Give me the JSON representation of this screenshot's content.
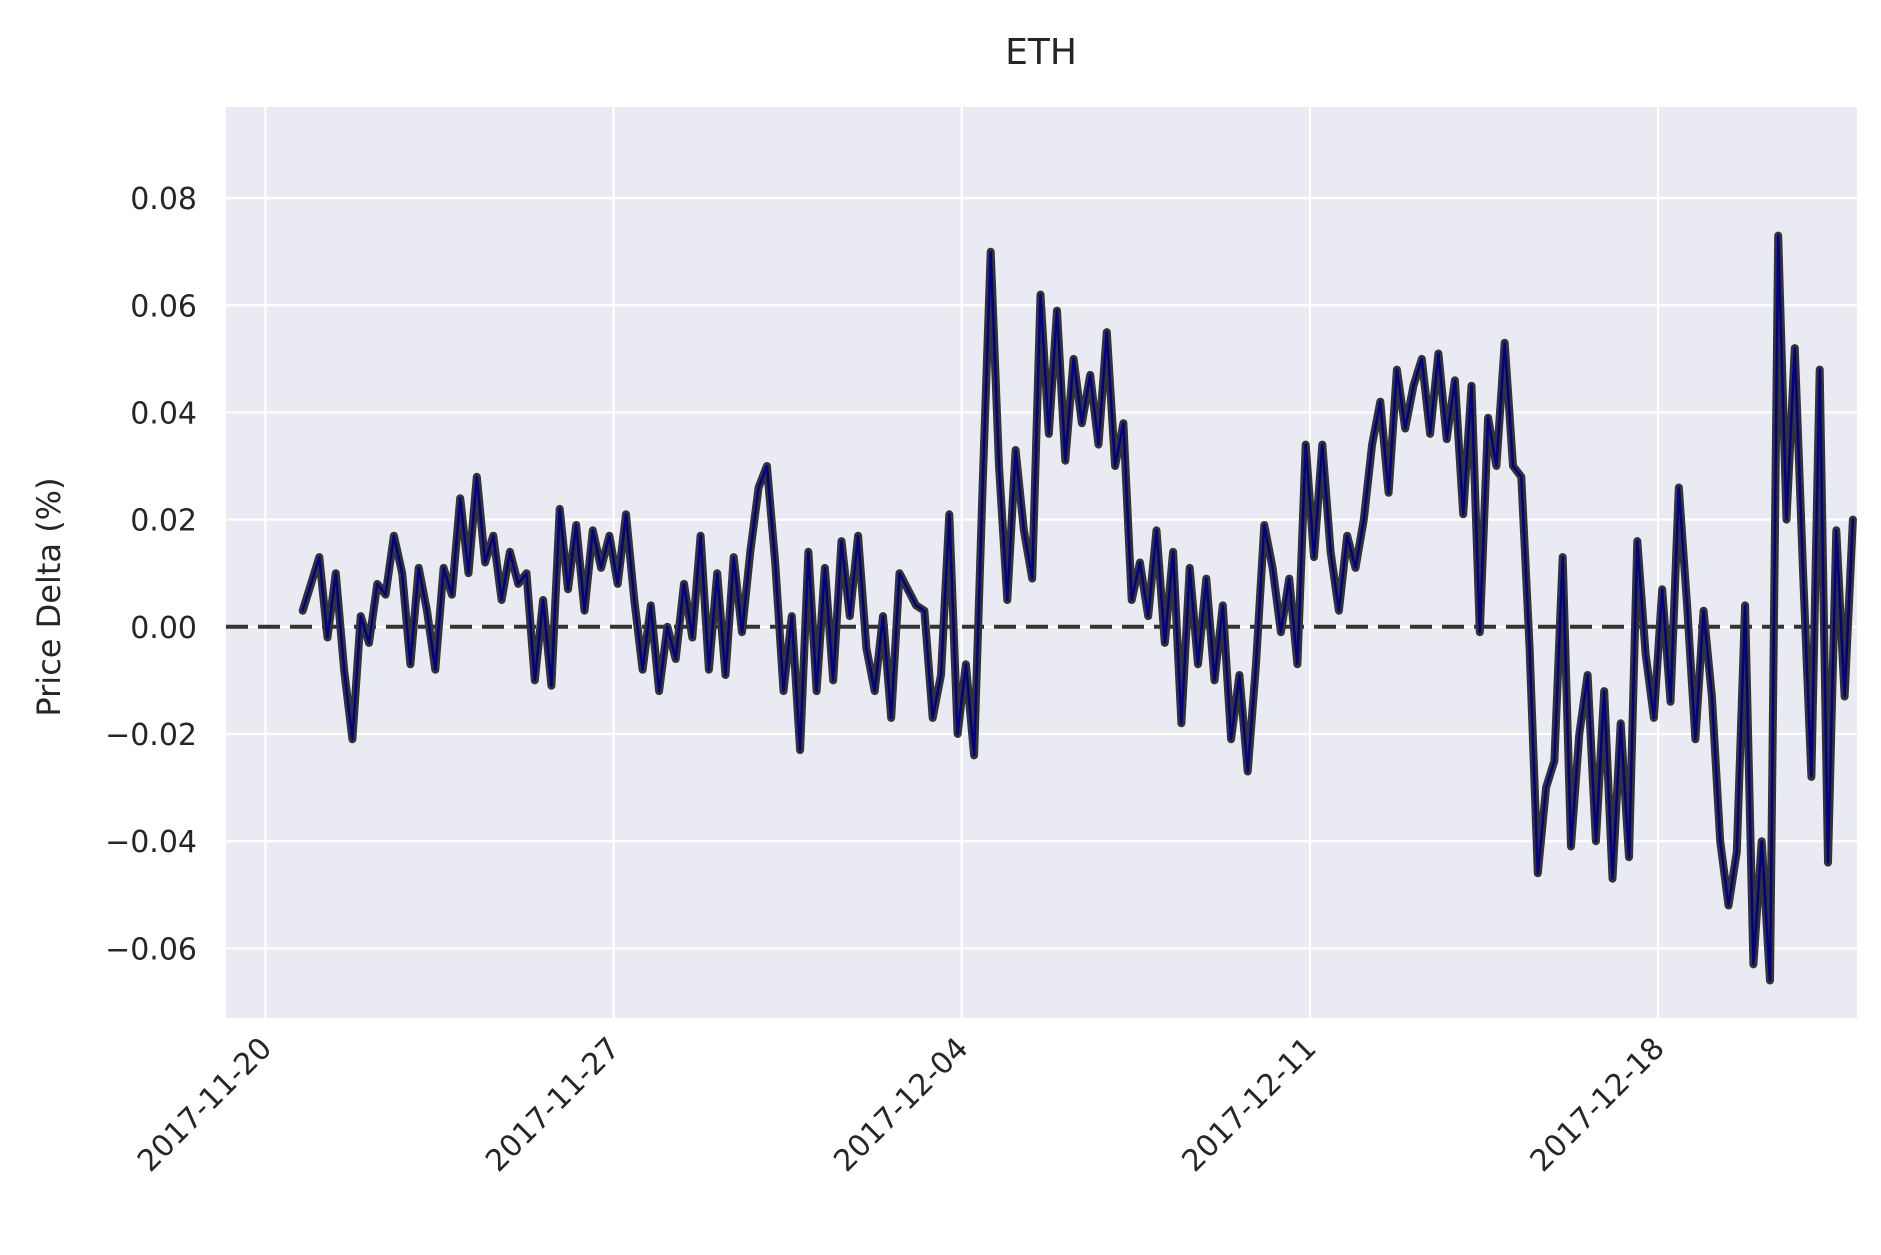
{
  "chart_data": {
    "type": "line",
    "title": "ETH",
    "xlabel": "",
    "ylabel": "Price Delta (%)",
    "x_tick_labels": [
      "2017-11-20",
      "2017-11-27",
      "2017-12-04",
      "2017-12-11",
      "2017-12-18"
    ],
    "y_tick_labels": [
      "−0.06",
      "−0.04",
      "−0.02",
      "0.00",
      "0.02",
      "0.04",
      "0.06",
      "0.08"
    ],
    "y_ticks": [
      -0.06,
      -0.04,
      -0.02,
      0.0,
      0.02,
      0.04,
      0.06,
      0.08
    ],
    "ylim": [
      -0.073,
      0.097
    ],
    "xlim": [
      "2017-11-19T05:00",
      "2017-12-22T00:00"
    ],
    "grid": true,
    "reference_line": {
      "y": 0.0,
      "style": "dashed",
      "color": "#333333"
    },
    "series": [
      {
        "line_color": "#00008b",
        "edge_color": "#333333",
        "points": [
          [
            "2017-11-20T18:00",
            0.003
          ],
          [
            "2017-11-20T22:00",
            0.008
          ],
          [
            "2017-11-21T02:00",
            0.013
          ],
          [
            "2017-11-21T06:00",
            -0.002
          ],
          [
            "2017-11-21T10:00",
            0.01
          ],
          [
            "2017-11-21T14:00",
            -0.008
          ],
          [
            "2017-11-21T18:00",
            -0.021
          ],
          [
            "2017-11-21T22:00",
            0.002
          ],
          [
            "2017-11-22T02:00",
            -0.003
          ],
          [
            "2017-11-22T06:00",
            0.008
          ],
          [
            "2017-11-22T10:00",
            0.006
          ],
          [
            "2017-11-22T14:00",
            0.017
          ],
          [
            "2017-11-22T18:00",
            0.01
          ],
          [
            "2017-11-22T22:00",
            -0.007
          ],
          [
            "2017-11-23T02:00",
            0.011
          ],
          [
            "2017-11-23T06:00",
            0.003
          ],
          [
            "2017-11-23T10:00",
            -0.008
          ],
          [
            "2017-11-23T14:00",
            0.011
          ],
          [
            "2017-11-23T18:00",
            0.006
          ],
          [
            "2017-11-23T22:00",
            0.024
          ],
          [
            "2017-11-24T02:00",
            0.01
          ],
          [
            "2017-11-24T06:00",
            0.028
          ],
          [
            "2017-11-24T10:00",
            0.012
          ],
          [
            "2017-11-24T14:00",
            0.017
          ],
          [
            "2017-11-24T18:00",
            0.005
          ],
          [
            "2017-11-24T22:00",
            0.014
          ],
          [
            "2017-11-25T02:00",
            0.008
          ],
          [
            "2017-11-25T06:00",
            0.01
          ],
          [
            "2017-11-25T10:00",
            -0.01
          ],
          [
            "2017-11-25T14:00",
            0.005
          ],
          [
            "2017-11-25T18:00",
            -0.011
          ],
          [
            "2017-11-25T22:00",
            0.022
          ],
          [
            "2017-11-26T02:00",
            0.007
          ],
          [
            "2017-11-26T06:00",
            0.019
          ],
          [
            "2017-11-26T10:00",
            0.003
          ],
          [
            "2017-11-26T14:00",
            0.018
          ],
          [
            "2017-11-26T18:00",
            0.011
          ],
          [
            "2017-11-26T22:00",
            0.017
          ],
          [
            "2017-11-27T02:00",
            0.008
          ],
          [
            "2017-11-27T06:00",
            0.021
          ],
          [
            "2017-11-27T10:00",
            0.005
          ],
          [
            "2017-11-27T14:00",
            -0.008
          ],
          [
            "2017-11-27T18:00",
            0.004
          ],
          [
            "2017-11-27T22:00",
            -0.012
          ],
          [
            "2017-11-28T02:00",
            0.0
          ],
          [
            "2017-11-28T06:00",
            -0.006
          ],
          [
            "2017-11-28T10:00",
            0.008
          ],
          [
            "2017-11-28T14:00",
            -0.002
          ],
          [
            "2017-11-28T18:00",
            0.017
          ],
          [
            "2017-11-28T22:00",
            -0.008
          ],
          [
            "2017-11-29T02:00",
            0.01
          ],
          [
            "2017-11-29T06:00",
            -0.009
          ],
          [
            "2017-11-29T10:00",
            0.013
          ],
          [
            "2017-11-29T14:00",
            -0.001
          ],
          [
            "2017-11-29T18:00",
            0.014
          ],
          [
            "2017-11-29T22:00",
            0.026
          ],
          [
            "2017-11-30T02:00",
            0.03
          ],
          [
            "2017-11-30T06:00",
            0.012
          ],
          [
            "2017-11-30T10:00",
            -0.012
          ],
          [
            "2017-11-30T14:00",
            0.002
          ],
          [
            "2017-11-30T18:00",
            -0.023
          ],
          [
            "2017-11-30T22:00",
            0.014
          ],
          [
            "2017-12-01T02:00",
            -0.012
          ],
          [
            "2017-12-01T06:00",
            0.011
          ],
          [
            "2017-12-01T10:00",
            -0.01
          ],
          [
            "2017-12-01T14:00",
            0.016
          ],
          [
            "2017-12-01T18:00",
            0.002
          ],
          [
            "2017-12-01T22:00",
            0.017
          ],
          [
            "2017-12-02T02:00",
            -0.004
          ],
          [
            "2017-12-02T06:00",
            -0.012
          ],
          [
            "2017-12-02T10:00",
            0.002
          ],
          [
            "2017-12-02T14:00",
            -0.017
          ],
          [
            "2017-12-02T18:00",
            0.01
          ],
          [
            "2017-12-02T22:00",
            0.007
          ],
          [
            "2017-12-03T02:00",
            0.004
          ],
          [
            "2017-12-03T06:00",
            0.003
          ],
          [
            "2017-12-03T10:00",
            -0.017
          ],
          [
            "2017-12-03T14:00",
            -0.009
          ],
          [
            "2017-12-03T18:00",
            0.021
          ],
          [
            "2017-12-03T22:00",
            -0.02
          ],
          [
            "2017-12-04T02:00",
            -0.007
          ],
          [
            "2017-12-04T06:00",
            -0.024
          ],
          [
            "2017-12-04T10:00",
            0.025
          ],
          [
            "2017-12-04T14:00",
            0.07
          ],
          [
            "2017-12-04T18:00",
            0.03
          ],
          [
            "2017-12-04T22:00",
            0.005
          ],
          [
            "2017-12-05T02:00",
            0.033
          ],
          [
            "2017-12-05T06:00",
            0.018
          ],
          [
            "2017-12-05T10:00",
            0.009
          ],
          [
            "2017-12-05T14:00",
            0.062
          ],
          [
            "2017-12-05T18:00",
            0.036
          ],
          [
            "2017-12-05T22:00",
            0.059
          ],
          [
            "2017-12-06T02:00",
            0.031
          ],
          [
            "2017-12-06T06:00",
            0.05
          ],
          [
            "2017-12-06T10:00",
            0.038
          ],
          [
            "2017-12-06T14:00",
            0.047
          ],
          [
            "2017-12-06T18:00",
            0.034
          ],
          [
            "2017-12-06T22:00",
            0.055
          ],
          [
            "2017-12-07T02:00",
            0.03
          ],
          [
            "2017-12-07T06:00",
            0.038
          ],
          [
            "2017-12-07T10:00",
            0.005
          ],
          [
            "2017-12-07T14:00",
            0.012
          ],
          [
            "2017-12-07T18:00",
            0.002
          ],
          [
            "2017-12-07T22:00",
            0.018
          ],
          [
            "2017-12-08T02:00",
            -0.003
          ],
          [
            "2017-12-08T06:00",
            0.014
          ],
          [
            "2017-12-08T10:00",
            -0.018
          ],
          [
            "2017-12-08T14:00",
            0.011
          ],
          [
            "2017-12-08T18:00",
            -0.007
          ],
          [
            "2017-12-08T22:00",
            0.009
          ],
          [
            "2017-12-09T02:00",
            -0.01
          ],
          [
            "2017-12-09T06:00",
            0.004
          ],
          [
            "2017-12-09T10:00",
            -0.021
          ],
          [
            "2017-12-09T14:00",
            -0.009
          ],
          [
            "2017-12-09T18:00",
            -0.027
          ],
          [
            "2017-12-09T22:00",
            -0.007
          ],
          [
            "2017-12-10T02:00",
            0.019
          ],
          [
            "2017-12-10T06:00",
            0.011
          ],
          [
            "2017-12-10T10:00",
            -0.001
          ],
          [
            "2017-12-10T14:00",
            0.009
          ],
          [
            "2017-12-10T18:00",
            -0.007
          ],
          [
            "2017-12-10T22:00",
            0.034
          ],
          [
            "2017-12-11T02:00",
            0.013
          ],
          [
            "2017-12-11T06:00",
            0.034
          ],
          [
            "2017-12-11T10:00",
            0.014
          ],
          [
            "2017-12-11T14:00",
            0.003
          ],
          [
            "2017-12-11T18:00",
            0.017
          ],
          [
            "2017-12-11T22:00",
            0.011
          ],
          [
            "2017-12-12T02:00",
            0.02
          ],
          [
            "2017-12-12T06:00",
            0.034
          ],
          [
            "2017-12-12T10:00",
            0.042
          ],
          [
            "2017-12-12T14:00",
            0.025
          ],
          [
            "2017-12-12T18:00",
            0.048
          ],
          [
            "2017-12-12T22:00",
            0.037
          ],
          [
            "2017-12-13T02:00",
            0.045
          ],
          [
            "2017-12-13T06:00",
            0.05
          ],
          [
            "2017-12-13T10:00",
            0.036
          ],
          [
            "2017-12-13T14:00",
            0.051
          ],
          [
            "2017-12-13T18:00",
            0.035
          ],
          [
            "2017-12-13T22:00",
            0.046
          ],
          [
            "2017-12-14T02:00",
            0.021
          ],
          [
            "2017-12-14T06:00",
            0.045
          ],
          [
            "2017-12-14T10:00",
            -0.001
          ],
          [
            "2017-12-14T14:00",
            0.039
          ],
          [
            "2017-12-14T18:00",
            0.03
          ],
          [
            "2017-12-14T22:00",
            0.053
          ],
          [
            "2017-12-15T02:00",
            0.03
          ],
          [
            "2017-12-15T06:00",
            0.028
          ],
          [
            "2017-12-15T10:00",
            -0.004
          ],
          [
            "2017-12-15T14:00",
            -0.046
          ],
          [
            "2017-12-15T18:00",
            -0.03
          ],
          [
            "2017-12-15T22:00",
            -0.025
          ],
          [
            "2017-12-16T02:00",
            0.013
          ],
          [
            "2017-12-16T06:00",
            -0.041
          ],
          [
            "2017-12-16T10:00",
            -0.02
          ],
          [
            "2017-12-16T14:00",
            -0.009
          ],
          [
            "2017-12-16T18:00",
            -0.04
          ],
          [
            "2017-12-16T22:00",
            -0.012
          ],
          [
            "2017-12-17T02:00",
            -0.047
          ],
          [
            "2017-12-17T06:00",
            -0.018
          ],
          [
            "2017-12-17T10:00",
            -0.043
          ],
          [
            "2017-12-17T14:00",
            0.016
          ],
          [
            "2017-12-17T18:00",
            -0.005
          ],
          [
            "2017-12-17T22:00",
            -0.017
          ],
          [
            "2017-12-18T02:00",
            0.007
          ],
          [
            "2017-12-18T06:00",
            -0.014
          ],
          [
            "2017-12-18T10:00",
            0.026
          ],
          [
            "2017-12-18T14:00",
            0.004
          ],
          [
            "2017-12-18T18:00",
            -0.021
          ],
          [
            "2017-12-18T22:00",
            0.003
          ],
          [
            "2017-12-19T02:00",
            -0.013
          ],
          [
            "2017-12-19T06:00",
            -0.04
          ],
          [
            "2017-12-19T10:00",
            -0.052
          ],
          [
            "2017-12-19T14:00",
            -0.042
          ],
          [
            "2017-12-19T18:00",
            0.004
          ],
          [
            "2017-12-19T22:00",
            -0.063
          ],
          [
            "2017-12-20T02:00",
            -0.04
          ],
          [
            "2017-12-20T06:00",
            -0.066
          ],
          [
            "2017-12-20T10:00",
            0.073
          ],
          [
            "2017-12-20T14:00",
            0.02
          ],
          [
            "2017-12-20T18:00",
            0.052
          ],
          [
            "2017-12-20T22:00",
            0.01
          ],
          [
            "2017-12-21T02:00",
            -0.028
          ],
          [
            "2017-12-21T06:00",
            0.048
          ],
          [
            "2017-12-21T10:00",
            -0.044
          ],
          [
            "2017-12-21T14:00",
            0.018
          ],
          [
            "2017-12-21T18:00",
            -0.013
          ],
          [
            "2017-12-21T22:00",
            0.02
          ]
        ]
      }
    ]
  }
}
